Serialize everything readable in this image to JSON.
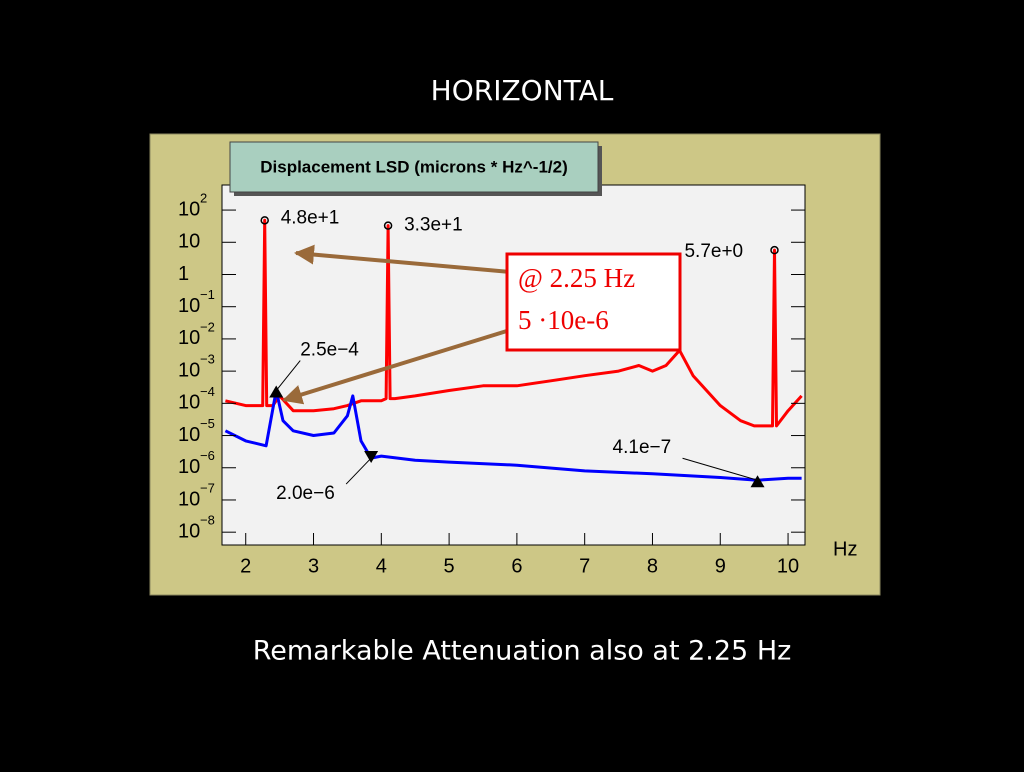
{
  "slide": {
    "title": "HORIZONTAL",
    "caption": "Remarkable Attenuation also at 2.25 Hz"
  },
  "chart_data": {
    "type": "line",
    "title": "Displacement LSD (microns * Hz^-1/2)",
    "x_label": "Hz",
    "xlim": [
      1.65,
      10.25
    ],
    "xticks": [
      2,
      3,
      4,
      5,
      6,
      7,
      8,
      9,
      10
    ],
    "yscale": "log",
    "ylim": [
      4e-09,
      600
    ],
    "yticks": [
      {
        "value": 100,
        "label": "10",
        "exponent": "2"
      },
      10,
      1,
      {
        "value": 0.1,
        "label": "10",
        "exponent": "−1"
      },
      {
        "value": 0.01,
        "label": "10",
        "exponent": "−2"
      },
      {
        "value": 0.001,
        "label": "10",
        "exponent": "−3"
      },
      {
        "value": 0.0001,
        "label": "10",
        "exponent": "−4"
      },
      {
        "value": 1e-05,
        "label": "10",
        "exponent": "−5"
      },
      {
        "value": 1e-06,
        "label": "10",
        "exponent": "−6"
      },
      {
        "value": 1e-07,
        "label": "10",
        "exponent": "−7"
      },
      {
        "value": 1e-08,
        "label": "10",
        "exponent": "−8"
      }
    ],
    "series": [
      {
        "color": "#ff0000",
        "x": [
          1.7,
          2.0,
          2.25,
          2.28,
          2.31,
          2.4,
          2.5,
          2.7,
          3.0,
          3.3,
          3.5,
          3.7,
          4.0,
          4.07,
          4.1,
          4.13,
          4.2,
          4.5,
          5.0,
          5.5,
          6.0,
          6.5,
          7.0,
          7.5,
          7.8,
          8.0,
          8.2,
          8.4,
          8.6,
          9.0,
          9.3,
          9.5,
          9.77,
          9.8,
          9.83,
          10.0,
          10.2
        ],
        "values": [
          0.00012,
          8.5e-05,
          8.5e-05,
          48,
          8.5e-05,
          8.5e-05,
          0.00017,
          5.9e-05,
          5.9e-05,
          6.8e-05,
          8.5e-05,
          0.00012,
          0.00012,
          0.00014,
          33,
          0.00014,
          0.00014,
          0.00017,
          0.00025,
          0.00035,
          0.00035,
          0.0005,
          0.00072,
          0.001,
          0.0015,
          0.001,
          0.0015,
          0.0044,
          0.00072,
          8.5e-05,
          2.9e-05,
          2e-05,
          2e-05,
          5.7,
          2e-05,
          5.9e-05,
          0.00017
        ],
        "peaks": {
          "x": [
            2.28,
            4.1,
            9.8
          ],
          "values": [
            48,
            33,
            5.7
          ],
          "value_labels": [
            "4.8e+1",
            "3.3e+1",
            "5.7e+0"
          ]
        }
      },
      {
        "color": "#0000ff",
        "x": [
          1.7,
          2.0,
          2.3,
          2.45,
          2.55,
          2.7,
          3.0,
          3.3,
          3.5,
          3.58,
          3.7,
          3.85,
          4.0,
          4.5,
          5.0,
          6.0,
          7.0,
          8.0,
          9.0,
          9.55,
          10.0,
          10.2
        ],
        "values": [
          1.4e-05,
          6.8e-06,
          4.8e-06,
          0.00025,
          2.9e-05,
          1.4e-05,
          1e-05,
          1.2e-05,
          4.1e-05,
          0.00017,
          6.8e-06,
          2e-06,
          2.3e-06,
          1.7e-06,
          1.5e-06,
          1.2e-06,
          8e-07,
          6.5e-07,
          5e-07,
          4.1e-07,
          4.7e-07,
          4.7e-07
        ],
        "peaks": {
          "x": [
            2.45,
            3.85,
            9.55
          ],
          "values": [
            0.00025,
            2e-06,
            4.1e-07
          ],
          "value_labels": [
            "2.5e−4",
            "2.0e−6",
            "4.1e−7"
          ]
        }
      }
    ],
    "annotation": {
      "lines": [
        "@ 2.25 Hz",
        "5 ·10e-6"
      ]
    }
  }
}
